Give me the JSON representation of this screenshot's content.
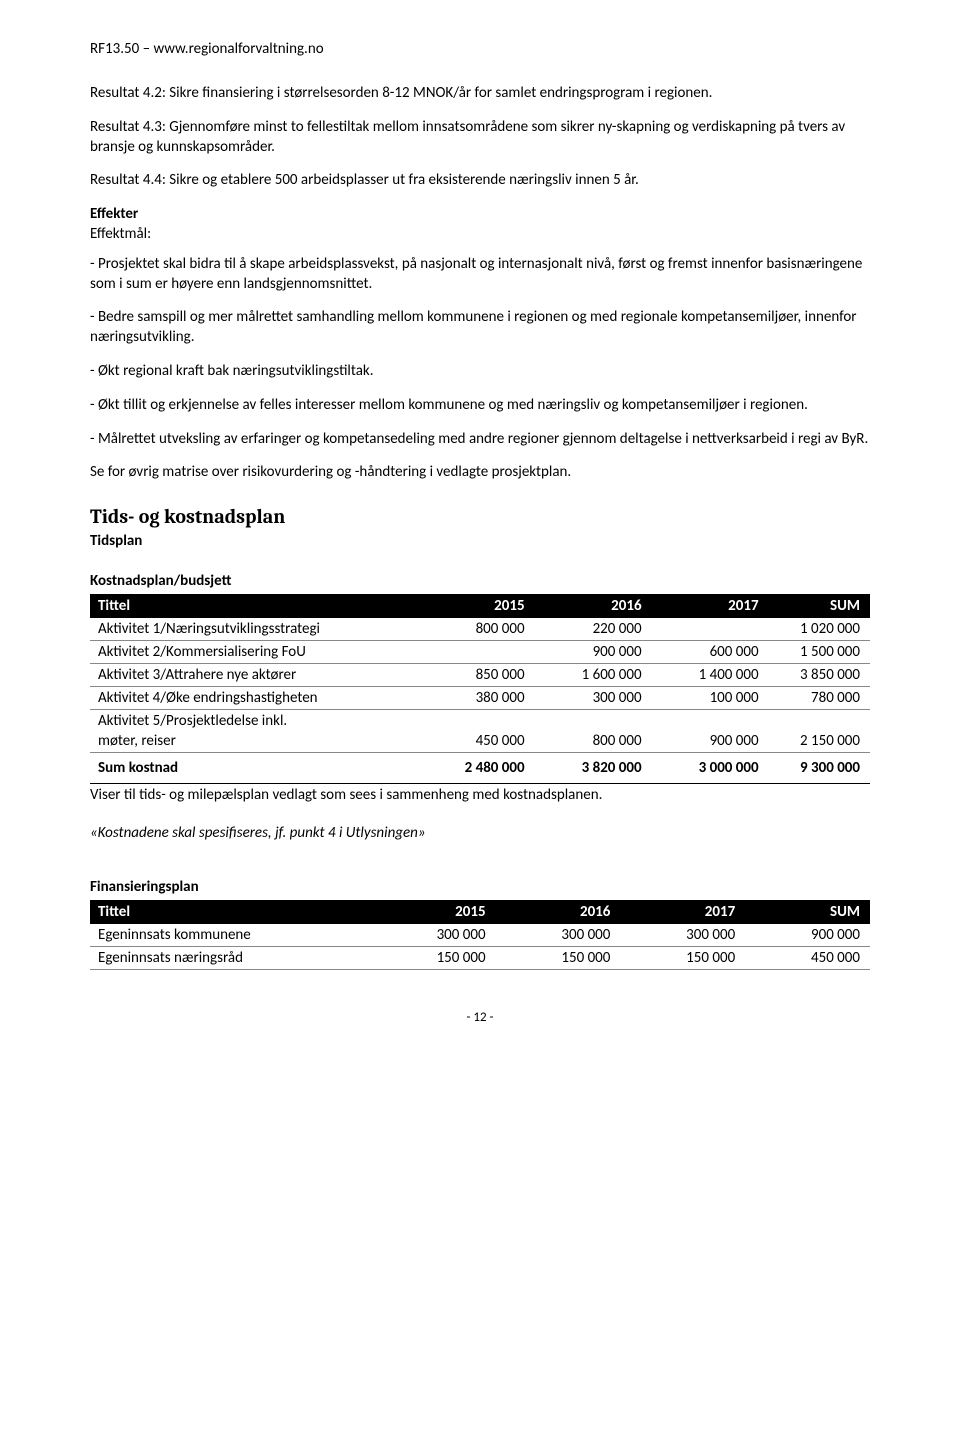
{
  "header": "RF13.50 – www.regionalforvaltning.no",
  "paragraphs": {
    "p1": "Resultat 4.2: Sikre finansiering i størrelsesorden 8-12 MNOK/år for samlet endringsprogram i regionen.",
    "p2": "Resultat 4.3: Gjennomføre minst to fellestiltak mellom innsatsområdene som sikrer ny-skapning og verdiskapning på tvers av bransje og kunnskapsområder.",
    "p3": "Resultat 4.4: Sikre og etablere 500 arbeidsplasser ut fra eksisterende næringsliv innen 5 år.",
    "effekter_head": "Effekter",
    "effektmal": "Effektmål:",
    "e1": "- Prosjektet skal bidra til å skape arbeidsplassvekst, på nasjonalt og internasjonalt nivå, først og fremst innenfor basisnæringene som i sum er høyere enn landsgjennomsnittet.",
    "e2": "- Bedre samspill og mer målrettet samhandling mellom kommunene i regionen og med regionale kompetansemiljøer, innenfor næringsutvikling.",
    "e3": "- Økt regional kraft bak næringsutviklingstiltak.",
    "e4": "- Økt tillit og erkjennelse av felles interesser mellom kommunene og med næringsliv og kompetansemiljøer i regionen.",
    "e5": "- Målrettet utveksling av erfaringer og kompetansedeling med andre regioner gjennom deltagelse i nettverksarbeid i regi av ByR.",
    "e6": "Se for øvrig matrise over risikovurdering og -håndtering i vedlagte prosjektplan."
  },
  "section_title": "Tids- og kostnadsplan",
  "tidsplan_label": "Tidsplan",
  "kostnad": {
    "heading": "Kostnadsplan/budsjett",
    "columns": [
      "Tittel",
      "2015",
      "2016",
      "2017",
      "SUM"
    ],
    "rows": [
      {
        "title": "Aktivitet 1/Næringsutviklingsstrategi",
        "c": [
          "800 000",
          "220 000",
          "",
          "1 020 000"
        ]
      },
      {
        "title": "Aktivitet 2/Kommersialisering FoU",
        "c": [
          "",
          "900 000",
          "600 000",
          "1 500 000"
        ]
      },
      {
        "title": "Aktivitet 3/Attrahere nye aktører",
        "c": [
          "850 000",
          "1 600 000",
          "1 400 000",
          "3 850 000"
        ]
      },
      {
        "title": "Aktivitet 4/Øke endringshastigheten",
        "c": [
          "380 000",
          "300 000",
          "100 000",
          "780 000"
        ]
      }
    ],
    "split_row": {
      "line1": "Aktivitet 5/Prosjektledelse inkl.",
      "line2": "møter, reiser",
      "c": [
        "450 000",
        "800 000",
        "900 000",
        "2 150 000"
      ]
    },
    "sum": {
      "title": "Sum kostnad",
      "c": [
        "2 480 000",
        "3 820 000",
        "3 000 000",
        "9 300 000"
      ]
    },
    "after": "Viser til tids- og milepælsplan vedlagt som sees i sammenheng med kostnadsplanen."
  },
  "quote": "«Kostnadene skal spesifiseres, jf. punkt 4 i Utlysningen»",
  "finans": {
    "heading": "Finansieringsplan",
    "columns": [
      "Tittel",
      "2015",
      "2016",
      "2017",
      "SUM"
    ],
    "rows": [
      {
        "title": "Egeninnsats kommunene",
        "c": [
          "300 000",
          "300 000",
          "300 000",
          "900 000"
        ]
      },
      {
        "title": "Egeninnsats næringsråd",
        "c": [
          "150 000",
          "150 000",
          "150 000",
          "450 000"
        ]
      }
    ]
  },
  "page_number": "- 12 -"
}
